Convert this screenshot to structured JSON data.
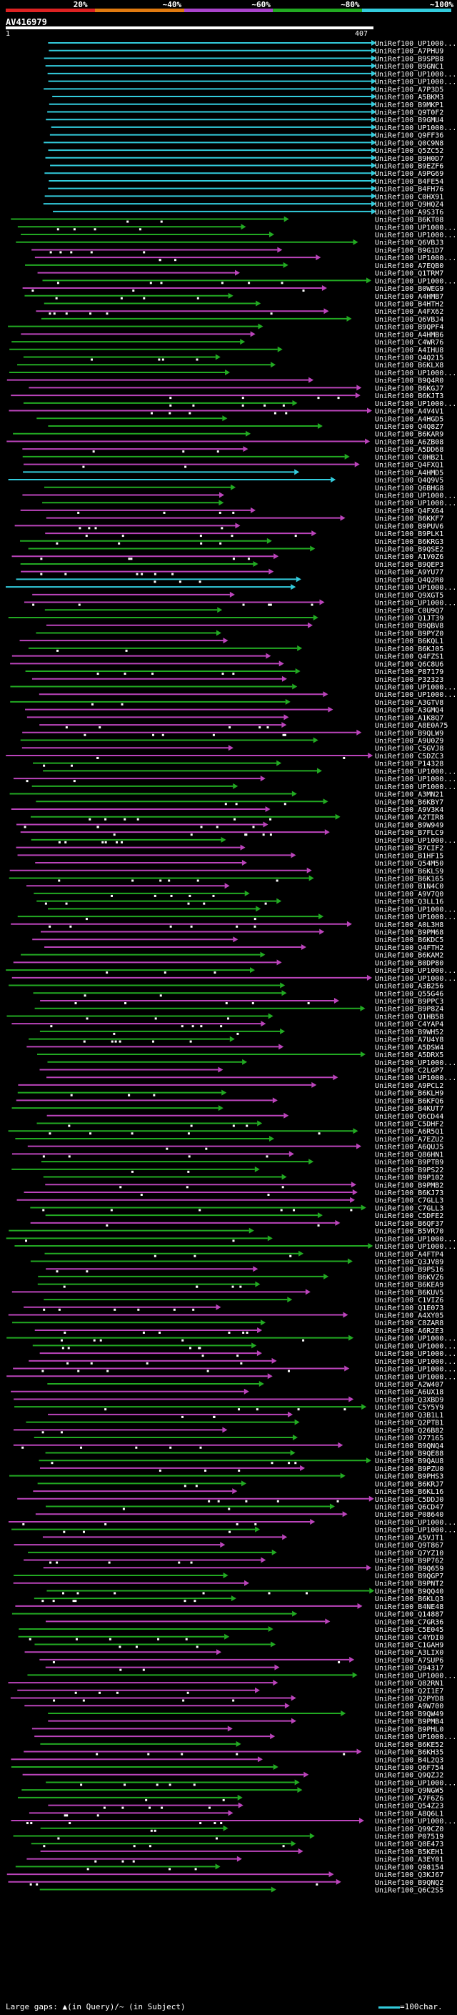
{
  "legend": {
    "items": [
      {
        "label": "20%",
        "color": "#dd2222"
      },
      {
        "label": "~40%",
        "color": "#e07a10"
      },
      {
        "label": "~60%",
        "color": "#aa44cc"
      },
      {
        "label": "~80%",
        "color": "#22aa22"
      },
      {
        "label": "~100%",
        "color": "#33ccdd"
      }
    ]
  },
  "query": {
    "name": "AV416979",
    "start": "1",
    "end": "407"
  },
  "footer": {
    "text": "Large gaps: ▲(in Query)/~ (in Subject)",
    "scale": "=100char."
  },
  "chart_data": {
    "type": "alignment_hits",
    "query_length": 407,
    "colors": {
      "cyan": "#33ccdd",
      "green": "#22aa22",
      "purple": "#bb44bb",
      "orange": "#e0a020"
    },
    "labels": [
      "UniRef100_UP1000...",
      "UniRef100_A7PHU9",
      "UniRef100_B9SPB8",
      "UniRef100_B9GNC1",
      "UniRef100_UP1000...",
      "UniRef100_UP1000...",
      "UniRef100_A7P3D5",
      "UniRef100_A5BKM3",
      "UniRef100_B9MKP1",
      "UniRef100_Q9T0F2",
      "UniRef100_B9GMU4",
      "UniRef100_UP1000...",
      "UniRef100_Q9FF36",
      "UniRef100_Q0C9N8",
      "UniRef100_Q5ZC52",
      "UniRef100_B9H0D7",
      "UniRef100_B9EZF6",
      "UniRef100_A9PG69",
      "UniRef100_B4FE54",
      "UniRef100_B4FH76",
      "UniRef100_C0HX91",
      "UniRef100_Q9HQZ4",
      "UniRef100_A9S3T6",
      "UniRef100_B6KT08",
      "UniRef100_UP1000...",
      "UniRef100_UP1000...",
      "UniRef100_Q6VBJ3",
      "UniRef100_B9G1D7",
      "UniRef100_UP1000...",
      "UniRef100_A7EQB0",
      "UniRef100_Q1TRM7",
      "UniRef100_UP1000...",
      "UniRef100_B0WEG9",
      "UniRef100_A4HMB7",
      "UniRef100_B4HTH2",
      "UniRef100_A4FX62",
      "UniRef100_Q6VBJ4",
      "UniRef100_B9QPF4",
      "UniRef100_A4HMB6",
      "UniRef100_C4WR76",
      "UniRef100_A4IHU8",
      "UniRef100_Q4Q215",
      "UniRef100_B6KLX8",
      "UniRef100_UP1000...",
      "UniRef100_B9Q4R0",
      "UniRef100_B6KGJ7",
      "UniRef100_B6KJT3",
      "UniRef100_UP1000...",
      "UniRef100_A4V4V1",
      "UniRef100_A4HGD5",
      "UniRef100_Q4Q8Z7",
      "UniRef100_B6KAR9",
      "UniRef100_A6ZB08",
      "UniRef100_A5DD68",
      "UniRef100_C0HB21",
      "UniRef100_Q4FXQ1",
      "UniRef100_A4HMD5",
      "UniRef100_Q4Q9V5",
      "UniRef100_Q6BHG8",
      "UniRef100_UP1000...",
      "UniRef100_UP1000...",
      "UniRef100_Q4FX64",
      "UniRef100_B6KKF7",
      "UniRef100_B9PUV6",
      "UniRef100_B9PLK1",
      "UniRef100_B6KRG3",
      "UniRef100_B9QSE2",
      "UniRef100_A1V0Z6",
      "UniRef100_B9QEP3",
      "UniRef100_A9YU77",
      "UniRef100_Q4Q2R0",
      "UniRef100_UP1000...",
      "UniRef100_Q9XGT5",
      "UniRef100_UP1000...",
      "UniRef100_C0U9Q7",
      "UniRef100_Q1JT39",
      "UniRef100_B9QBV8",
      "UniRef100_B9PYZ0",
      "UniRef100_B6KQL1",
      "UniRef100_B6KJ05",
      "UniRef100_Q4FZS1",
      "UniRef100_Q6C8U6",
      "UniRef100_P87179",
      "UniRef100_P32323",
      "UniRef100_UP1000...",
      "UniRef100_UP1000...",
      "UniRef100_A3GTV8",
      "UniRef100_A3GMQ4",
      "UniRef100_A1K8Q7",
      "UniRef100_A8E0A75",
      "UniRef100_B9QLW9",
      "UniRef100_A9U0Z9",
      "UniRef100_C5GVJ8",
      "UniRef100_C5DZC3",
      "UniRef100_P14328",
      "UniRef100_UP1000...",
      "UniRef100_UP1000...",
      "UniRef100_UP1000...",
      "UniRef100_A3MN21",
      "UniRef100_B6KBY7",
      "UniRef100_A9V3K4",
      "UniRef100_A2TIR8",
      "UniRef100_B9W949",
      "UniRef100_B7FLC9",
      "UniRef100_UP1000...",
      "UniRef100_B7CIF2",
      "UniRef100_B1HF15",
      "UniRef100_Q54M50",
      "UniRef100_B6KLS9",
      "UniRef100_B6K165",
      "UniRef100_B1N4C0",
      "UniRef100_A9V7Q0",
      "UniRef100_Q3LL16",
      "UniRef100_UP1000...",
      "UniRef100_UP1000...",
      "UniRef100_A0L3H8",
      "UniRef100_B9PM68",
      "UniRef100_B6KDC5",
      "UniRef100_Q4FTH2",
      "UniRef100_B6KAM2",
      "UniRef100_B0DP80",
      "UniRef100_UP1000...",
      "UniRef100_UP1000...",
      "UniRef100_A3B256",
      "UniRef100_Q55G46",
      "UniRef100_B9PPC3",
      "UniRef100_B9P8Z4",
      "UniRef100_Q1HB58",
      "UniRef100_C4YAP4",
      "UniRef100_B9WH52",
      "UniRef100_A7U4Y8",
      "UniRef100_A5DSW4",
      "UniRef100_A5DRX5",
      "UniRef100_UP1000...",
      "UniRef100_C2LGP7",
      "UniRef100_UP1000...",
      "UniRef100_A9PCL2",
      "UniRef100_B6KLH9",
      "UniRef100_B6KFQ6",
      "UniRef100_B4KUT7",
      "UniRef100_Q6CD44",
      "UniRef100_C5DHF2",
      "UniRef100_A6R5Q1",
      "UniRef100_A7EZU2",
      "UniRef100_A6QUJ5",
      "UniRef100_Q86HN1",
      "UniRef100_B9PTB9",
      "UniRef100_B9PS22",
      "UniRef100_B9P102",
      "UniRef100_B9PMB2",
      "UniRef100_B6KJ73",
      "UniRef100_C7GLL3",
      "UniRef100_C7GLL3",
      "UniRef100_C5DFE2",
      "UniRef100_B6QF37",
      "UniRef100_B5VR70",
      "UniRef100_UP1000...",
      "UniRef100_UP1000...",
      "UniRef100_A4FTP4",
      "UniRef100_Q3JV89",
      "UniRef100_B9PS16",
      "UniRef100_B6KVZ6",
      "UniRef100_B6KEA9",
      "UniRef100_B6KUV5",
      "UniRef100_C1VIZ6",
      "UniRef100_Q1E073",
      "UniRef100_A4XY05",
      "UniRef100_C8ZAR8",
      "UniRef100_A6R2E3",
      "UniRef100_UP1000...",
      "UniRef100_UP1000...",
      "UniRef100_UP1000...",
      "UniRef100_UP1000...",
      "UniRef100_UP1000...",
      "UniRef100_UP1000...",
      "UniRef100_A2W407",
      "UniRef100_A6UX18",
      "UniRef100_Q3XBD9",
      "UniRef100_C5Y5Y9",
      "UniRef100_Q3B1L1",
      "UniRef100_Q2PTB1",
      "UniRef100_Q26B82",
      "UniRef100_O77165",
      "UniRef100_B9QNQ4",
      "UniRef100_B9QE88",
      "UniRef100_B9QAU8",
      "UniRef100_B9PZU0",
      "UniRef100_B9PHS3",
      "UniRef100_B6KRJ7",
      "UniRef100_B6KL16",
      "UniRef100_C5DDJ0",
      "UniRef100_Q6CD47",
      "UniRef100_P08640",
      "UniRef100_UP1000...",
      "UniRef100_UP1000...",
      "UniRef100_A5VJT1",
      "UniRef100_Q9T867",
      "UniRef100_Q7YZ10",
      "UniRef100_B9P762",
      "UniRef100_B9Q659",
      "UniRef100_B9QGP7",
      "UniRef100_B9PNT2",
      "UniRef100_B9QQ40",
      "UniRef100_B6KLQ3",
      "UniRef100_B4NE48",
      "UniRef100_Q14887",
      "UniRef100_C7GR36",
      "UniRef100_C5E045",
      "UniRef100_C4YDI0",
      "UniRef100_C1GAH9",
      "UniRef100_A3LIX0",
      "UniRef100_A7SUP6",
      "UniRef100_Q94317",
      "UniRef100_UP1000...",
      "UniRef100_Q82RN1",
      "UniRef100_Q2I1E7",
      "UniRef100_Q2PYD8",
      "UniRef100_A9W700",
      "UniRef100_B9QW49",
      "UniRef100_B9PMB4",
      "UniRef100_B9PHL0",
      "UniRef100_UP1000...",
      "UniRef100_B6KE52",
      "UniRef100_B6KH35",
      "UniRef100_B4L2Q3",
      "UniRef100_Q6F754",
      "UniRef100_Q9QZJ2",
      "UniRef100_UP1000...",
      "UniRef100_Q9NGW5",
      "UniRef100_A7F6Z6",
      "UniRef100_Q54Z23",
      "UniRef100_A8Q6L1",
      "UniRef100_UP1000...",
      "UniRef100_Q99CZ0",
      "UniRef100_P07519",
      "UniRef100_Q0E473",
      "UniRef100_B5KEH1",
      "UniRef100_A3EY01",
      "UniRef100_Q98154",
      "UniRef100_Q3KJ67",
      "UniRef100_B9QNQ2",
      "UniRef100_Q6C2S5"
    ]
  }
}
